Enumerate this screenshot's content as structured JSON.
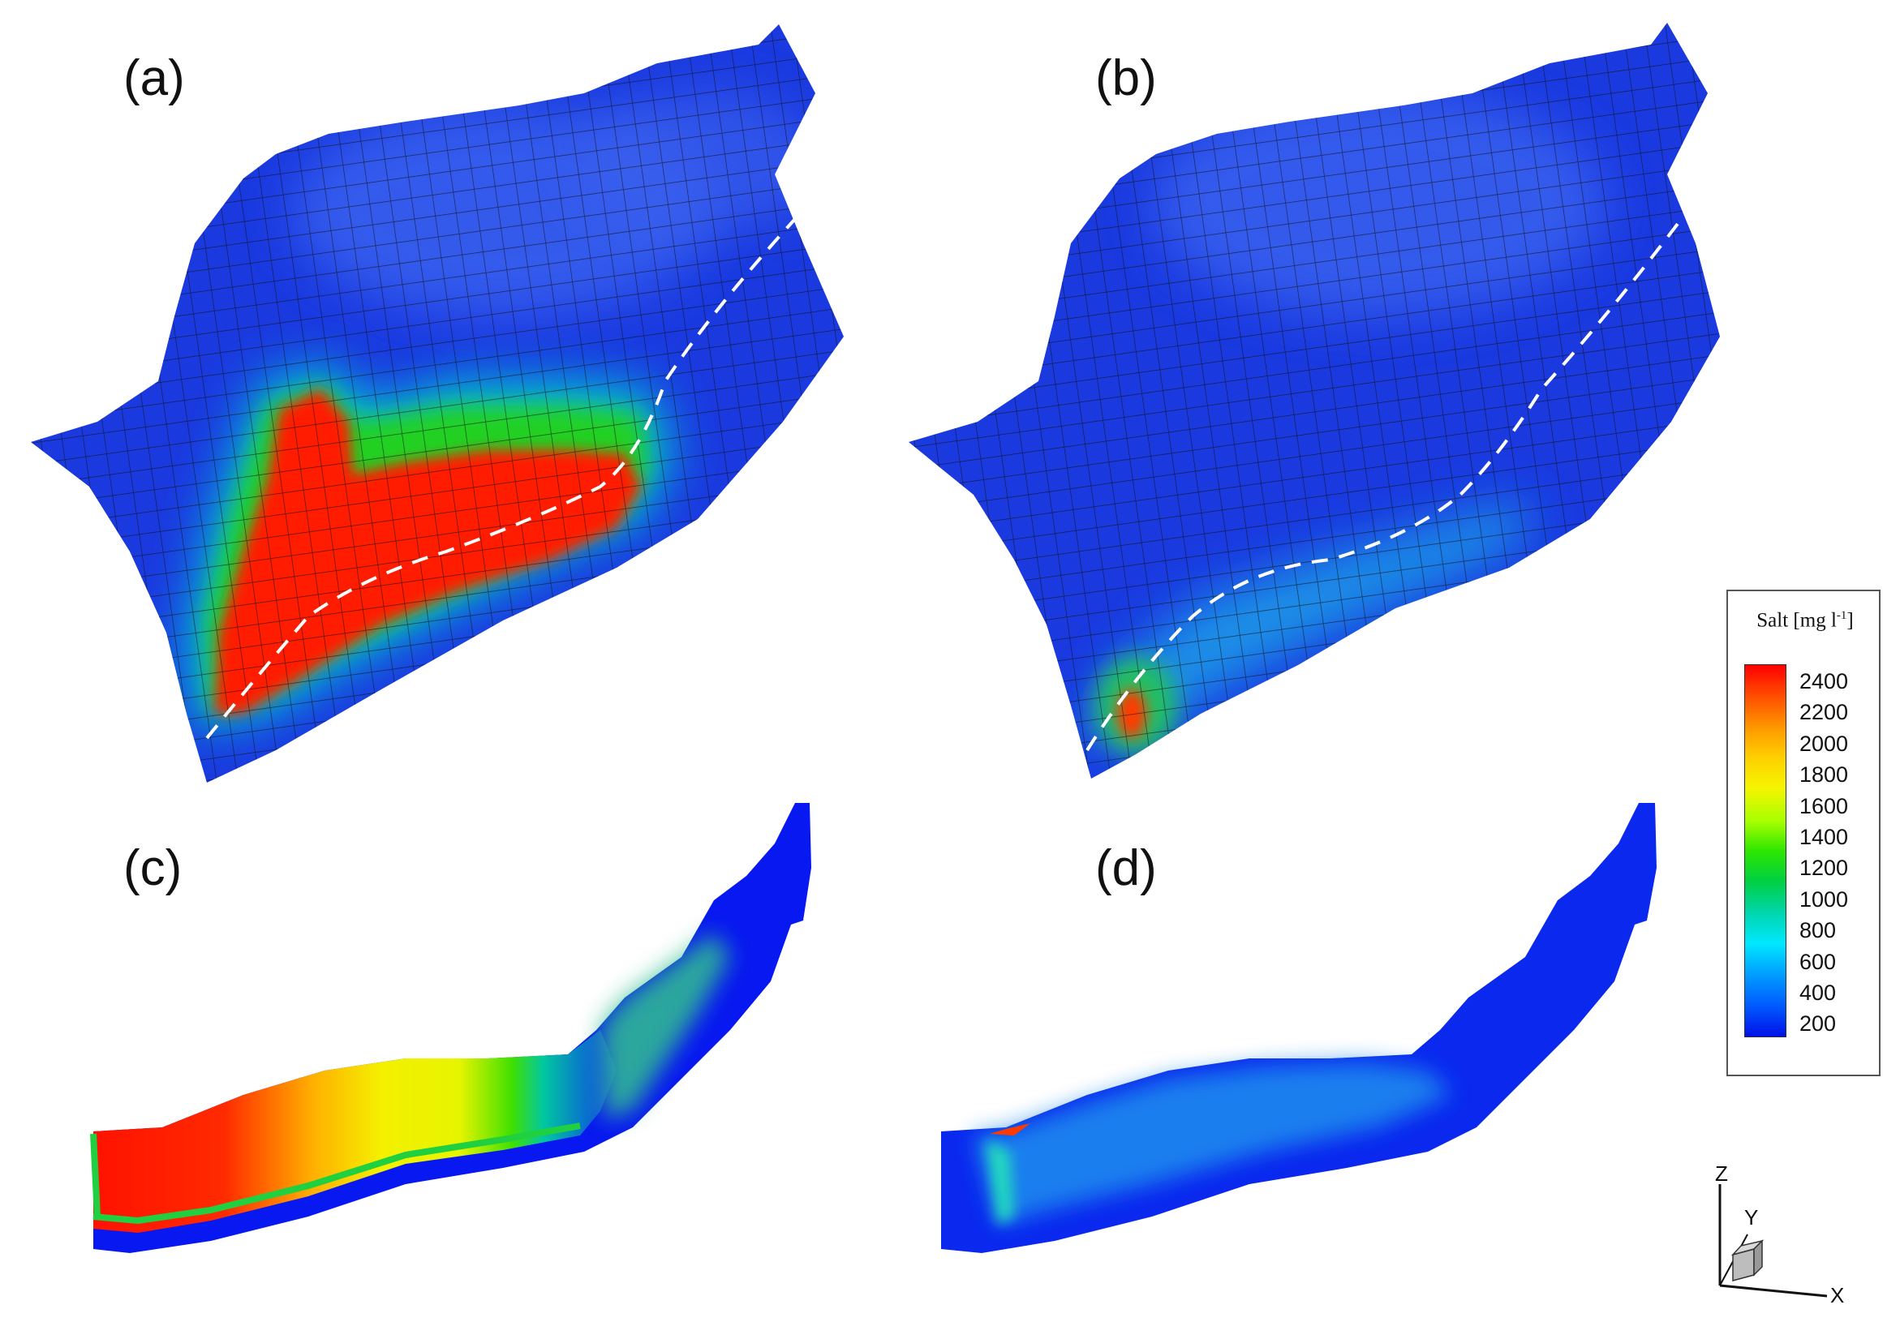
{
  "panels": {
    "a": "(a)",
    "b": "(b)",
    "c": "(c)",
    "d": "(d)"
  },
  "legend": {
    "title": "Salt [mg l",
    "title_sup": "-1",
    "title_end": "]",
    "ticks": [
      "2400",
      "2200",
      "2000",
      "1800",
      "1600",
      "1400",
      "1200",
      "1000",
      "800",
      "600",
      "400",
      "200"
    ]
  },
  "axes": {
    "z": "Z",
    "y": "Y",
    "x": "X"
  },
  "colors": {
    "low": "#0a1ee6",
    "mid": "#00d040",
    "high": "#ff0000"
  }
}
